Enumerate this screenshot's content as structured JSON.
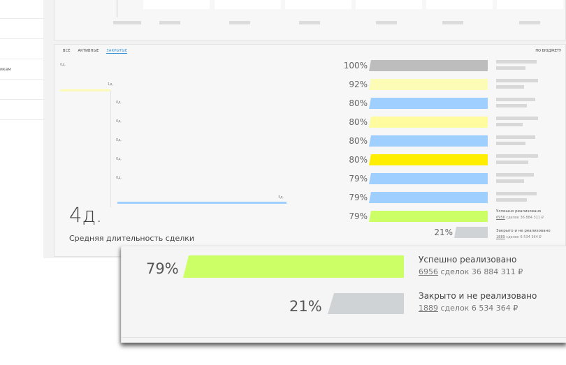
{
  "sidebar": {
    "partial_label": "икам"
  },
  "tabs": [
    {
      "label": "ВСЕ",
      "active": false
    },
    {
      "label": "АКТИВНЫЕ",
      "active": false
    },
    {
      "label": "ЗАКРЫТЫЕ",
      "active": true
    }
  ],
  "budget_label": "ПО БЮДЖЕТУ",
  "gantt": {
    "labels": [
      "0д.",
      "1д.",
      "0д.",
      "0д.",
      "0д.",
      "0д.",
      "0д.",
      "3д."
    ],
    "summary_value": "4д.",
    "summary_label": "Средняя длительность сделки"
  },
  "funnel": {
    "rows": [
      {
        "pct": "100%",
        "color": "#bdbdbd"
      },
      {
        "pct": "92%",
        "color": "#fdfcb6"
      },
      {
        "pct": "80%",
        "color": "#9ecfff"
      },
      {
        "pct": "80%",
        "color": "#fffca0"
      },
      {
        "pct": "80%",
        "color": "#9ecfff"
      },
      {
        "pct": "80%",
        "color": "#ffee00"
      },
      {
        "pct": "79%",
        "color": "#9ecfff"
      },
      {
        "pct": "79%",
        "color": "#9ecfff"
      },
      {
        "pct": "79%",
        "color": "#ccff66"
      }
    ],
    "lost": {
      "pct": "21%",
      "color": "#cfd3d6"
    }
  },
  "outcomes": {
    "success": {
      "title": "Успешно реализовано",
      "count": "6956",
      "rest": " сделок 36 884 311 ₽"
    },
    "failed": {
      "title": "Закрыто и не реализовано",
      "count": "1889",
      "rest": " сделок 6 534 364 ₽"
    }
  },
  "zoom": {
    "success_pct": "79%",
    "failed_pct": "21%",
    "success_title": "Успешно реализовано",
    "success_count": "6956",
    "success_rest": " сделок 36 884 311 ₽",
    "failed_title": "Закрыто и не реализовано",
    "failed_count": "1889",
    "failed_rest": " сделок 6 534 364 ₽"
  }
}
